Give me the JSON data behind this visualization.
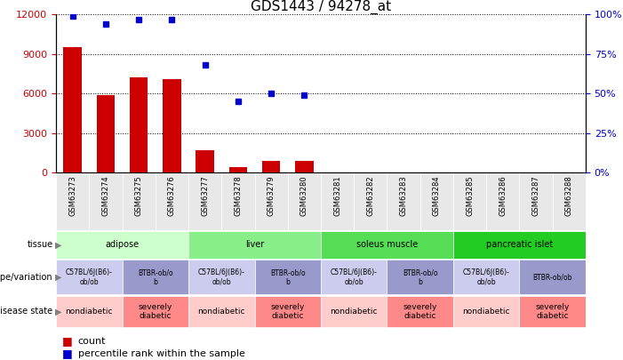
{
  "title": "GDS1443 / 94278_at",
  "samples": [
    "GSM63273",
    "GSM63274",
    "GSM63275",
    "GSM63276",
    "GSM63277",
    "GSM63278",
    "GSM63279",
    "GSM63280",
    "GSM63281",
    "GSM63282",
    "GSM63283",
    "GSM63284",
    "GSM63285",
    "GSM63286",
    "GSM63287",
    "GSM63288"
  ],
  "counts": [
    9500,
    5900,
    7200,
    7100,
    1700,
    400,
    900,
    900,
    0,
    0,
    0,
    0,
    0,
    0,
    0,
    0
  ],
  "percentiles": [
    99,
    94,
    97,
    97,
    68,
    45,
    50,
    49,
    null,
    null,
    null,
    null,
    null,
    null,
    null,
    null
  ],
  "ylim_left": [
    0,
    12000
  ],
  "yticks_left": [
    0,
    3000,
    6000,
    9000,
    12000
  ],
  "ylim_right": [
    0,
    100
  ],
  "yticks_right": [
    0,
    25,
    50,
    75,
    100
  ],
  "bar_color": "#cc0000",
  "dot_color": "#0000cc",
  "tissue_groups": [
    {
      "label": "adipose",
      "start": 0,
      "end": 4,
      "color": "#ccffcc"
    },
    {
      "label": "liver",
      "start": 4,
      "end": 8,
      "color": "#88ee88"
    },
    {
      "label": "soleus muscle",
      "start": 8,
      "end": 12,
      "color": "#55dd55"
    },
    {
      "label": "pancreatic islet",
      "start": 12,
      "end": 16,
      "color": "#22cc22"
    }
  ],
  "genotype_groups": [
    {
      "label": "C57BL/6J(B6)-\nob/ob",
      "start": 0,
      "end": 2,
      "color": "#ccccee"
    },
    {
      "label": "BTBR-ob/o\nb",
      "start": 2,
      "end": 4,
      "color": "#9999cc"
    },
    {
      "label": "C57BL/6J(B6)-\nob/ob",
      "start": 4,
      "end": 6,
      "color": "#ccccee"
    },
    {
      "label": "BTBR-ob/o\nb",
      "start": 6,
      "end": 8,
      "color": "#9999cc"
    },
    {
      "label": "C57BL/6J(B6)-\nob/ob",
      "start": 8,
      "end": 10,
      "color": "#ccccee"
    },
    {
      "label": "BTBR-ob/o\nb",
      "start": 10,
      "end": 12,
      "color": "#9999cc"
    },
    {
      "label": "C57BL/6J(B6)-\nob/ob",
      "start": 12,
      "end": 14,
      "color": "#ccccee"
    },
    {
      "label": "BTBR-ob/ob",
      "start": 14,
      "end": 16,
      "color": "#9999cc"
    }
  ],
  "disease_groups": [
    {
      "label": "nondiabetic",
      "start": 0,
      "end": 2,
      "color": "#ffcccc"
    },
    {
      "label": "severely\ndiabetic",
      "start": 2,
      "end": 4,
      "color": "#ff8888"
    },
    {
      "label": "nondiabetic",
      "start": 4,
      "end": 6,
      "color": "#ffcccc"
    },
    {
      "label": "severely\ndiabetic",
      "start": 6,
      "end": 8,
      "color": "#ff8888"
    },
    {
      "label": "nondiabetic",
      "start": 8,
      "end": 10,
      "color": "#ffcccc"
    },
    {
      "label": "severely\ndiabetic",
      "start": 10,
      "end": 12,
      "color": "#ff8888"
    },
    {
      "label": "nondiabetic",
      "start": 12,
      "end": 14,
      "color": "#ffcccc"
    },
    {
      "label": "severely\ndiabetic",
      "start": 14,
      "end": 16,
      "color": "#ff8888"
    }
  ],
  "background_color": "#ffffff",
  "legend_count_color": "#cc0000",
  "legend_pct_color": "#0000cc",
  "tick_label_bg": "#e8e8e8"
}
